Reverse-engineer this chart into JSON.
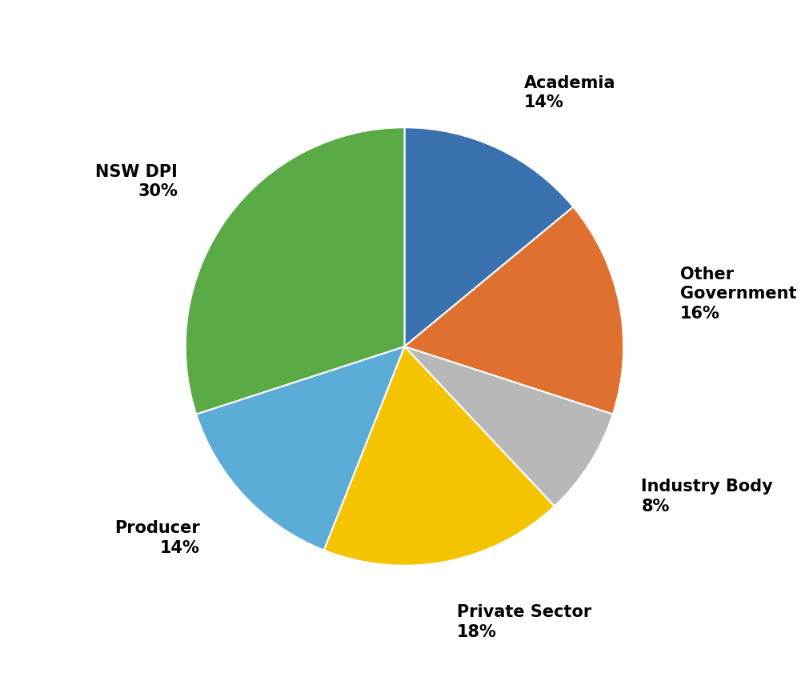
{
  "labels": [
    "Academia",
    "Other\nGovernment",
    "Industry Body",
    "Private Sector",
    "Producer",
    "NSW DPI"
  ],
  "values": [
    14,
    16,
    8,
    18,
    14,
    30
  ],
  "colors": [
    "#3a72b0",
    "#e07030",
    "#b8b8b8",
    "#f5c400",
    "#5bacd6",
    "#5aaa46"
  ],
  "label_texts": [
    "Academia\n14%",
    "Other\nGovernment\n16%",
    "Industry Body\n8%",
    "Private Sector\n18%",
    "Producer\n14%",
    "NSW DPI\n30%"
  ],
  "startangle": 90,
  "figsize": [
    10.11,
    8.66
  ],
  "dpi": 100,
  "font_size": 15,
  "font_weight": "bold"
}
